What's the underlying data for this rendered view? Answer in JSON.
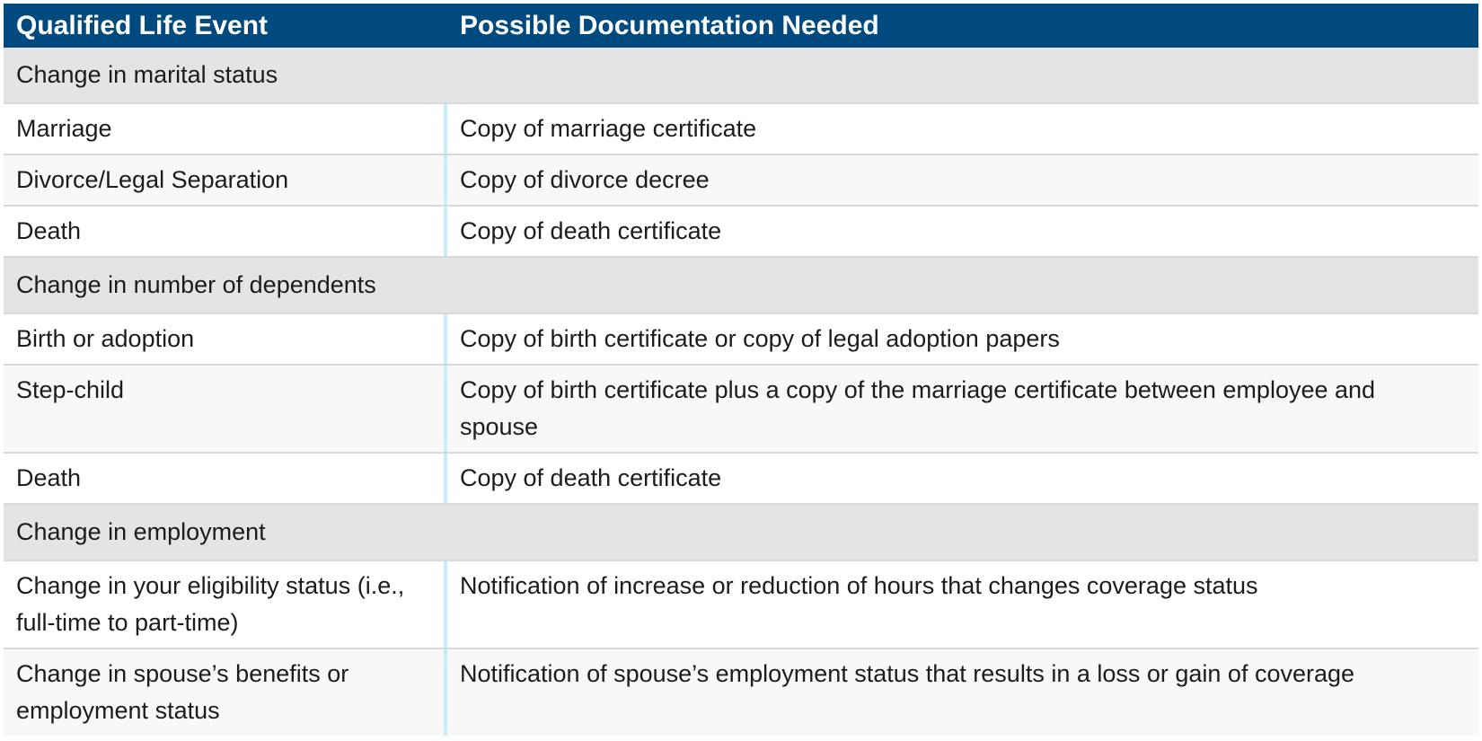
{
  "table": {
    "header": {
      "col1": "Qualified Life Event",
      "col2": "Possible Documentation Needed"
    },
    "sections": [
      {
        "title": "Change in marital status",
        "rows": [
          {
            "event": "Marriage",
            "doc": "Copy of marriage certificate"
          },
          {
            "event": "Divorce/Legal Separation",
            "doc": "Copy of divorce decree"
          },
          {
            "event": "Death",
            "doc": "Copy of death certificate"
          }
        ]
      },
      {
        "title": "Change in number of dependents",
        "rows": [
          {
            "event": "Birth or adoption",
            "doc": "Copy of birth certificate or copy of legal adoption papers"
          },
          {
            "event": "Step-child",
            "doc": "Copy of birth certificate plus a copy of the marriage certificate between employee and spouse"
          },
          {
            "event": "Death",
            "doc": "Copy of death certificate"
          }
        ]
      },
      {
        "title": "Change in employment",
        "rows": [
          {
            "event": "Change in your eligibility status (i.e., full-time to part-time)",
            "doc": "Notification of increase or reduction of hours that changes coverage status"
          },
          {
            "event": "Change in spouse’s benefits or employment status",
            "doc": "Notification of spouse’s employment status that results in a loss or gain of coverage"
          }
        ]
      }
    ],
    "colors": {
      "header_bg": "#004a80",
      "header_text": "#ffffff",
      "section_bg": "#e4e4e4",
      "alt_row_bg": "#f8f8f8",
      "column_divider": "#c9eef7",
      "row_border": "#d9d9d9"
    }
  }
}
